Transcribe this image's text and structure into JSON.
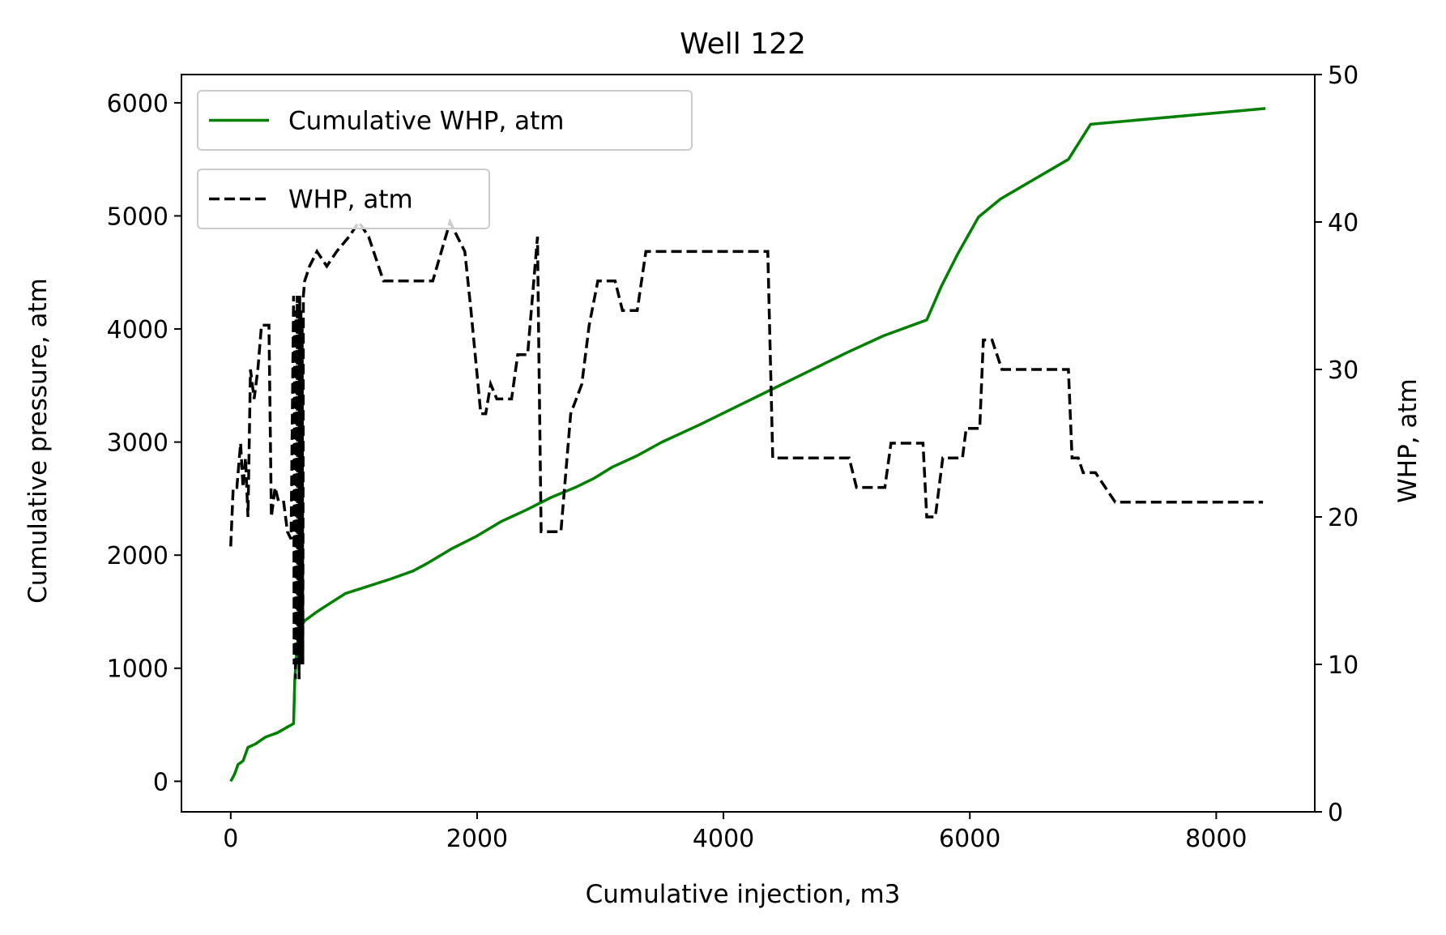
{
  "chart_data": {
    "type": "line",
    "title": "Well 122",
    "xlabel": "Cumulative injection, m3",
    "ylabel_left": "Cumulative pressure, atm",
    "ylabel_right": "WHP, atm",
    "xlim": [
      -400,
      8800
    ],
    "ylim_left": [
      -270,
      6250
    ],
    "ylim_right": [
      0,
      50
    ],
    "xticks": [
      "0",
      "2000",
      "4000",
      "6000",
      "8000"
    ],
    "xtick_values": [
      0,
      2000,
      4000,
      6000,
      8000
    ],
    "yticks_left": [
      "0",
      "1000",
      "2000",
      "3000",
      "4000",
      "5000",
      "6000"
    ],
    "ytick_left_values": [
      0,
      1000,
      2000,
      3000,
      4000,
      5000,
      6000
    ],
    "yticks_right": [
      "0",
      "10",
      "20",
      "30",
      "40",
      "50"
    ],
    "ytick_right_values": [
      0,
      10,
      20,
      30,
      40,
      50
    ],
    "grid": false,
    "series": [
      {
        "name": "Cumulative WHP, atm",
        "axis": "left",
        "color": "#008000",
        "style": "solid",
        "points": [
          [
            0,
            0
          ],
          [
            30,
            60
          ],
          [
            60,
            150
          ],
          [
            100,
            180
          ],
          [
            140,
            300
          ],
          [
            200,
            330
          ],
          [
            280,
            390
          ],
          [
            380,
            430
          ],
          [
            460,
            480
          ],
          [
            510,
            510
          ],
          [
            520,
            900
          ],
          [
            540,
            1200
          ],
          [
            560,
            1350
          ],
          [
            600,
            1420
          ],
          [
            700,
            1500
          ],
          [
            800,
            1570
          ],
          [
            930,
            1660
          ],
          [
            1100,
            1720
          ],
          [
            1300,
            1790
          ],
          [
            1480,
            1860
          ],
          [
            1600,
            1930
          ],
          [
            1800,
            2060
          ],
          [
            2000,
            2170
          ],
          [
            2200,
            2300
          ],
          [
            2400,
            2400
          ],
          [
            2600,
            2510
          ],
          [
            2800,
            2600
          ],
          [
            2950,
            2680
          ],
          [
            3100,
            2780
          ],
          [
            3300,
            2880
          ],
          [
            3500,
            3000
          ],
          [
            3800,
            3150
          ],
          [
            4100,
            3310
          ],
          [
            4400,
            3470
          ],
          [
            4700,
            3630
          ],
          [
            5000,
            3790
          ],
          [
            5300,
            3940
          ],
          [
            5650,
            4080
          ],
          [
            5770,
            4380
          ],
          [
            5900,
            4660
          ],
          [
            6070,
            4990
          ],
          [
            6250,
            5150
          ],
          [
            6500,
            5310
          ],
          [
            6800,
            5500
          ],
          [
            6980,
            5810
          ],
          [
            8400,
            5950
          ]
        ]
      },
      {
        "name": "WHP, atm",
        "axis": "right",
        "color": "#000000",
        "style": "dashed",
        "points": [
          [
            0,
            18
          ],
          [
            20,
            22
          ],
          [
            50,
            22
          ],
          [
            80,
            25
          ],
          [
            100,
            22
          ],
          [
            120,
            24
          ],
          [
            140,
            20
          ],
          [
            160,
            30
          ],
          [
            190,
            28
          ],
          [
            220,
            30
          ],
          [
            250,
            33
          ],
          [
            310,
            33
          ],
          [
            330,
            20
          ],
          [
            360,
            22
          ],
          [
            390,
            21
          ],
          [
            430,
            21
          ],
          [
            460,
            19
          ],
          [
            490,
            18.5
          ],
          [
            510,
            35
          ],
          [
            515,
            10
          ],
          [
            520,
            33
          ],
          [
            525,
            9
          ],
          [
            530,
            34
          ],
          [
            535,
            10
          ],
          [
            540,
            35
          ],
          [
            545,
            11
          ],
          [
            550,
            34
          ],
          [
            555,
            9
          ],
          [
            560,
            35
          ],
          [
            565,
            10
          ],
          [
            570,
            34
          ],
          [
            575,
            11
          ],
          [
            580,
            33
          ],
          [
            585,
            10
          ],
          [
            590,
            35
          ],
          [
            600,
            36
          ],
          [
            640,
            37
          ],
          [
            700,
            38
          ],
          [
            780,
            37
          ],
          [
            860,
            38
          ],
          [
            960,
            39
          ],
          [
            1040,
            40
          ],
          [
            1120,
            39
          ],
          [
            1240,
            36
          ],
          [
            1640,
            36
          ],
          [
            1780,
            40
          ],
          [
            1840,
            39
          ],
          [
            1900,
            38
          ],
          [
            1950,
            34
          ],
          [
            2030,
            27
          ],
          [
            2070,
            27
          ],
          [
            2110,
            29
          ],
          [
            2160,
            28
          ],
          [
            2280,
            28
          ],
          [
            2330,
            31
          ],
          [
            2410,
            31
          ],
          [
            2490,
            39
          ],
          [
            2500,
            32
          ],
          [
            2520,
            19
          ],
          [
            2680,
            19
          ],
          [
            2760,
            27
          ],
          [
            2850,
            29
          ],
          [
            2910,
            33
          ],
          [
            2980,
            36
          ],
          [
            3120,
            36
          ],
          [
            3180,
            34
          ],
          [
            3300,
            34
          ],
          [
            3370,
            38
          ],
          [
            4360,
            38
          ],
          [
            4400,
            24
          ],
          [
            5020,
            24
          ],
          [
            5080,
            22
          ],
          [
            5310,
            22
          ],
          [
            5360,
            25
          ],
          [
            5620,
            25
          ],
          [
            5650,
            20
          ],
          [
            5720,
            20
          ],
          [
            5780,
            24
          ],
          [
            5940,
            24
          ],
          [
            5970,
            26
          ],
          [
            6080,
            26
          ],
          [
            6110,
            32
          ],
          [
            6180,
            32
          ],
          [
            6260,
            30
          ],
          [
            6800,
            30
          ],
          [
            6830,
            24
          ],
          [
            6880,
            24
          ],
          [
            6920,
            23
          ],
          [
            7020,
            23
          ],
          [
            7180,
            21
          ],
          [
            8380,
            21
          ]
        ]
      }
    ],
    "legends": [
      {
        "label": "Cumulative WHP, atm",
        "position": "upper-left"
      },
      {
        "label": "WHP, atm",
        "position": "upper-left-below"
      }
    ]
  }
}
